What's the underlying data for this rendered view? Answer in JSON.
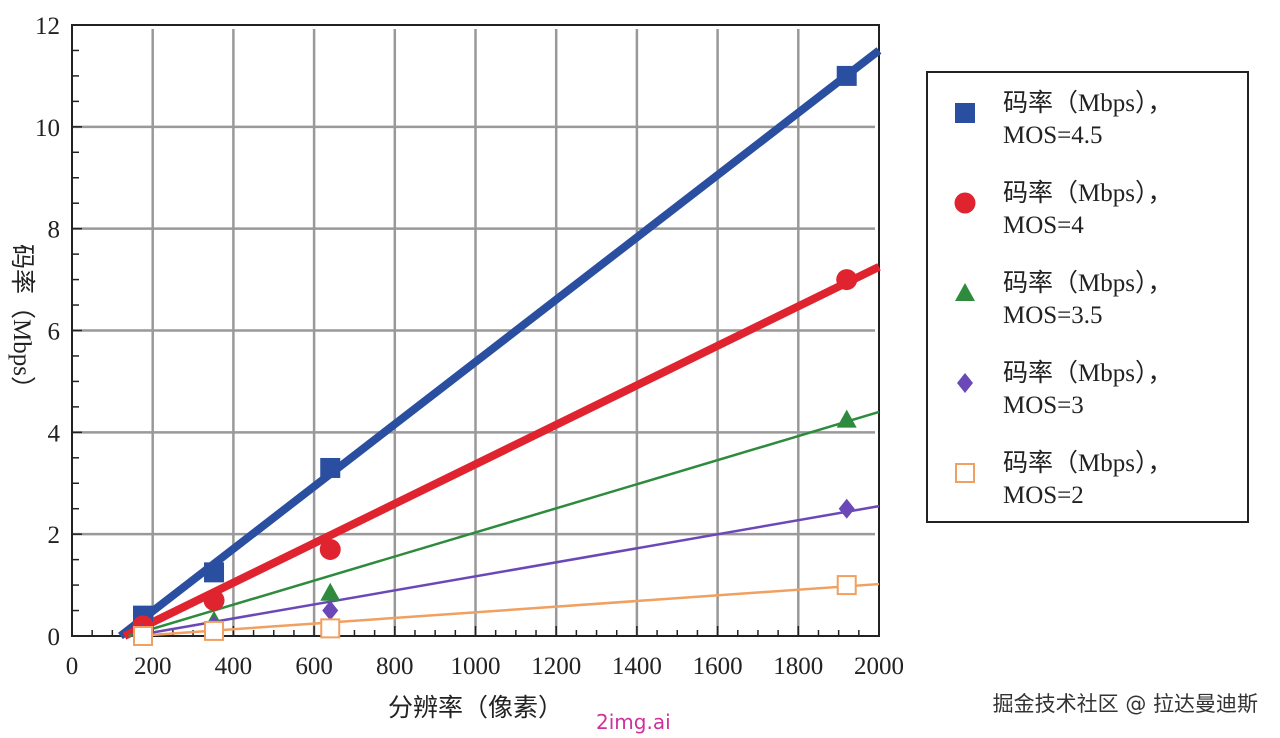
{
  "chart_data": {
    "type": "scatter",
    "title": "",
    "xlabel": "分辨率（像素）",
    "ylabel": "码率（Mbps）",
    "xlim": [
      0,
      2000
    ],
    "ylim": [
      0,
      12
    ],
    "xticks": [
      0,
      200,
      400,
      600,
      800,
      1000,
      1200,
      1400,
      1600,
      1800,
      2000
    ],
    "yticks": [
      0,
      2,
      4,
      6,
      8,
      10,
      12
    ],
    "grid": true,
    "legend_position": "right",
    "x": [
      176,
      352,
      640,
      1920
    ],
    "series": [
      {
        "name": "码率（Mbps），",
        "name2": "MOS=4.5",
        "marker": "square",
        "color": "#2a4fa0",
        "values": [
          0.4,
          1.25,
          3.3,
          11.0
        ],
        "fit": [
          [
            120,
            0
          ],
          [
            2000,
            11.5
          ]
        ],
        "line_weight": "thick"
      },
      {
        "name": "码率（Mbps），",
        "name2": "MOS=4",
        "marker": "circle",
        "color": "#e0242f",
        "values": [
          0.2,
          0.7,
          1.7,
          7.0
        ],
        "fit": [
          [
            130,
            0
          ],
          [
            2000,
            7.25
          ]
        ],
        "line_weight": "thick"
      },
      {
        "name": "码率（Mbps），",
        "name2": "MOS=3.5",
        "marker": "triangle",
        "color": "#2e8b3e",
        "values": [
          0.05,
          0.3,
          0.85,
          4.25
        ],
        "fit": [
          [
            140,
            0
          ],
          [
            2000,
            4.4
          ]
        ],
        "line_weight": "thin"
      },
      {
        "name": "码率（Mbps），",
        "name2": "MOS=3",
        "marker": "diamond",
        "color": "#6a48b8",
        "values": [
          0.05,
          0.2,
          0.5,
          2.5
        ],
        "fit": [
          [
            150,
            0
          ],
          [
            2000,
            2.55
          ]
        ],
        "line_weight": "thin"
      },
      {
        "name": "码率（Mbps），",
        "name2": "MOS=2",
        "marker": "open-square",
        "color": "#f0a060",
        "values": [
          0.0,
          0.1,
          0.15,
          1.0
        ],
        "fit": [
          [
            160,
            0
          ],
          [
            2000,
            1.02
          ]
        ],
        "line_weight": "thin"
      }
    ]
  },
  "watermark": {
    "text": "掘金技术社区 @ 拉达曼迪斯",
    "site": "2img.ai"
  }
}
